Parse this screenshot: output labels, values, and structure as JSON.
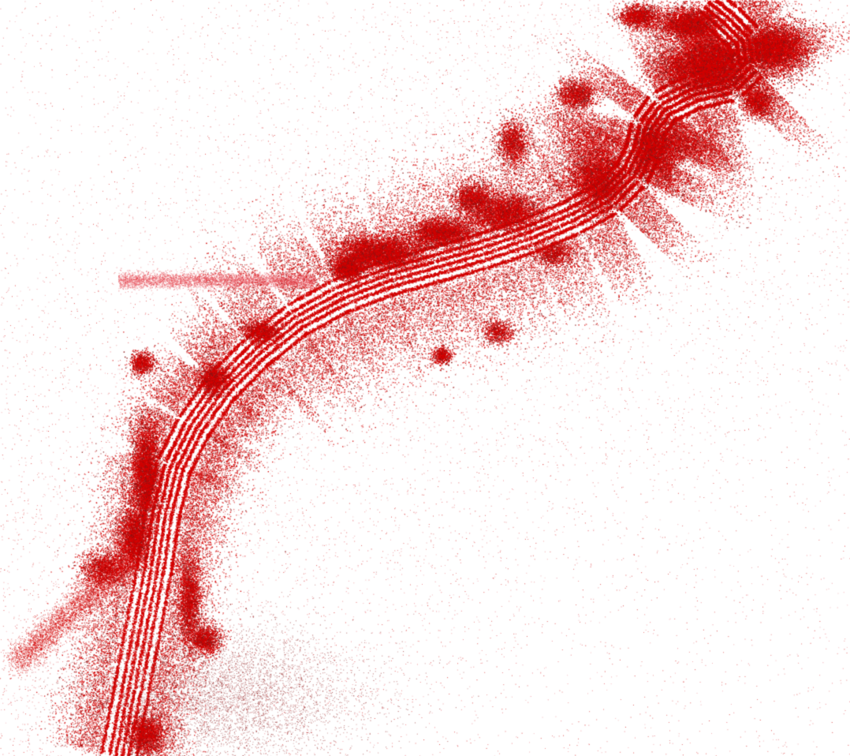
{
  "view": {
    "type": "point-cloud-top-view",
    "background_color": "#ffffff",
    "point_color": "#d40000",
    "point_color_dark": "#8c1414",
    "point_color_faint": "#e8505a",
    "texts": []
  }
}
